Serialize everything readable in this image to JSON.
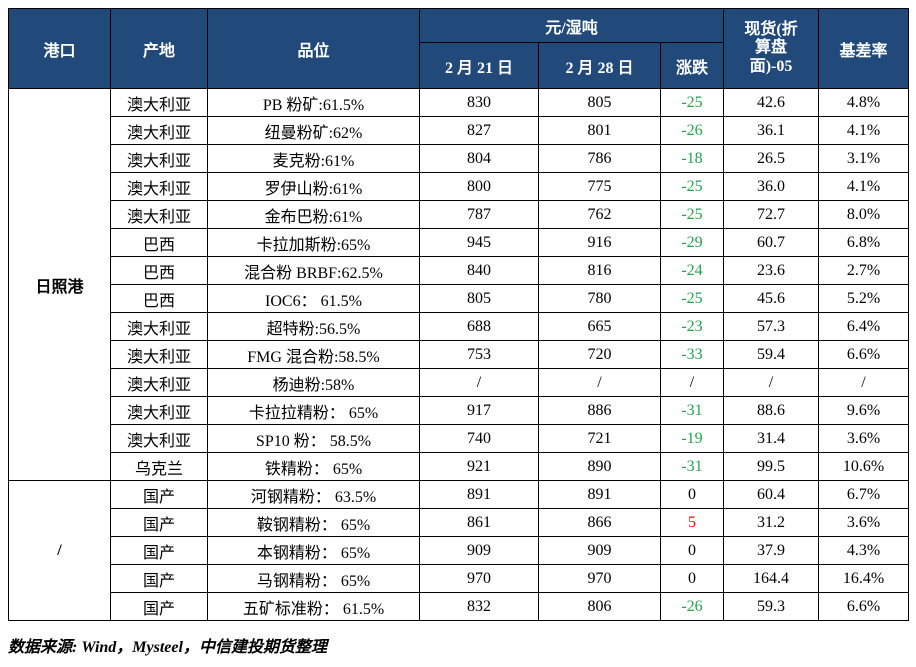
{
  "header": {
    "port": "港口",
    "origin": "产地",
    "grade": "品位",
    "unit_group": "元/湿吨",
    "date1": "2 月 21 日",
    "date2": "2 月 28 日",
    "change": "涨跌",
    "spot": "现货(折\n算盘\n面)-05",
    "basis_rate": "基差率"
  },
  "colors": {
    "header_bg": "#214A7B",
    "header_text": "#FFFFFF",
    "negative_green": "#22A24E",
    "positive_red": "#FF0000",
    "border": "#000000"
  },
  "ports": [
    {
      "label": "日照港",
      "rowspan": 14
    },
    {
      "label": "/",
      "rowspan": 5
    }
  ],
  "rows": [
    {
      "origin": "澳大利亚",
      "grade": "PB 粉矿:61.5%",
      "d1": "830",
      "d2": "805",
      "chg": "-25",
      "chg_dir": "down",
      "spot": "42.6",
      "basis": "4.8%"
    },
    {
      "origin": "澳大利亚",
      "grade": "纽曼粉矿:62%",
      "d1": "827",
      "d2": "801",
      "chg": "-26",
      "chg_dir": "down",
      "spot": "36.1",
      "basis": "4.1%"
    },
    {
      "origin": "澳大利亚",
      "grade": "麦克粉:61%",
      "d1": "804",
      "d2": "786",
      "chg": "-18",
      "chg_dir": "down",
      "spot": "26.5",
      "basis": "3.1%"
    },
    {
      "origin": "澳大利亚",
      "grade": "罗伊山粉:61%",
      "d1": "800",
      "d2": "775",
      "chg": "-25",
      "chg_dir": "down",
      "spot": "36.0",
      "basis": "4.1%"
    },
    {
      "origin": "澳大利亚",
      "grade": "金布巴粉:61%",
      "d1": "787",
      "d2": "762",
      "chg": "-25",
      "chg_dir": "down",
      "spot": "72.7",
      "basis": "8.0%"
    },
    {
      "origin": "巴西",
      "grade": "卡拉加斯粉:65%",
      "d1": "945",
      "d2": "916",
      "chg": "-29",
      "chg_dir": "down",
      "spot": "60.7",
      "basis": "6.8%"
    },
    {
      "origin": "巴西",
      "grade": "混合粉 BRBF:62.5%",
      "d1": "840",
      "d2": "816",
      "chg": "-24",
      "chg_dir": "down",
      "spot": "23.6",
      "basis": "2.7%"
    },
    {
      "origin": "巴西",
      "grade": "IOC6： 61.5%",
      "d1": "805",
      "d2": "780",
      "chg": "-25",
      "chg_dir": "down",
      "spot": "45.6",
      "basis": "5.2%"
    },
    {
      "origin": "澳大利亚",
      "grade": "超特粉:56.5%",
      "d1": "688",
      "d2": "665",
      "chg": "-23",
      "chg_dir": "down",
      "spot": "57.3",
      "basis": "6.4%"
    },
    {
      "origin": "澳大利亚",
      "grade": "FMG 混合粉:58.5%",
      "d1": "753",
      "d2": "720",
      "chg": "-33",
      "chg_dir": "down",
      "spot": "59.4",
      "basis": "6.6%"
    },
    {
      "origin": "澳大利亚",
      "grade": "杨迪粉:58%",
      "d1": "/",
      "d2": "/",
      "chg": "/",
      "chg_dir": "na",
      "spot": "/",
      "basis": "/"
    },
    {
      "origin": "澳大利亚",
      "grade": "卡拉拉精粉： 65%",
      "d1": "917",
      "d2": "886",
      "chg": "-31",
      "chg_dir": "down",
      "spot": "88.6",
      "basis": "9.6%"
    },
    {
      "origin": "澳大利亚",
      "grade": "SP10 粉： 58.5%",
      "d1": "740",
      "d2": "721",
      "chg": "-19",
      "chg_dir": "down",
      "spot": "31.4",
      "basis": "3.6%"
    },
    {
      "origin": "乌克兰",
      "grade": "铁精粉： 65%",
      "d1": "921",
      "d2": "890",
      "chg": "-31",
      "chg_dir": "down",
      "spot": "99.5",
      "basis": "10.6%"
    },
    {
      "origin": "国产",
      "grade": "河钢精粉： 63.5%",
      "d1": "891",
      "d2": "891",
      "chg": "0",
      "chg_dir": "flat",
      "spot": "60.4",
      "basis": "6.7%"
    },
    {
      "origin": "国产",
      "grade": "鞍钢精粉： 65%",
      "d1": "861",
      "d2": "866",
      "chg": "5",
      "chg_dir": "up",
      "spot": "31.2",
      "basis": "3.6%"
    },
    {
      "origin": "国产",
      "grade": "本钢精粉： 65%",
      "d1": "909",
      "d2": "909",
      "chg": "0",
      "chg_dir": "flat",
      "spot": "37.9",
      "basis": "4.3%"
    },
    {
      "origin": "国产",
      "grade": "马钢精粉： 65%",
      "d1": "970",
      "d2": "970",
      "chg": "0",
      "chg_dir": "flat",
      "spot": "164.4",
      "basis": "16.4%"
    },
    {
      "origin": "国产",
      "grade": "五矿标准粉： 61.5%",
      "d1": "832",
      "d2": "806",
      "chg": "-26",
      "chg_dir": "down",
      "spot": "59.3",
      "basis": "6.6%"
    }
  ],
  "footer": "数据来源: Wind，Mysteel，中信建投期货整理"
}
